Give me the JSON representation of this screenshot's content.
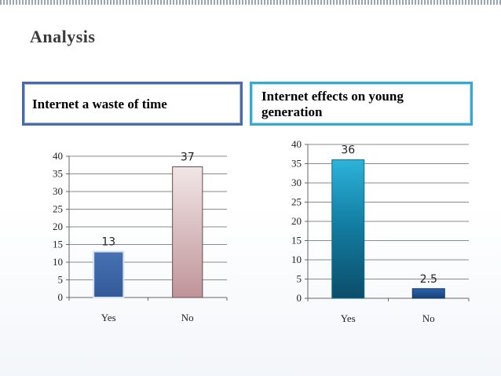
{
  "slide": {
    "title": "Analysis"
  },
  "headings": [
    {
      "text": "Internet a waste of time"
    },
    {
      "text": "Internet effects on young generation"
    }
  ],
  "chart_data": [
    {
      "type": "bar",
      "title": "Internet a waste of time",
      "categories": [
        "Yes",
        "No"
      ],
      "values": [
        13,
        37
      ],
      "data_labels": [
        "13",
        "37"
      ],
      "ylim": [
        0,
        40
      ],
      "yticks": [
        0,
        5,
        10,
        15,
        20,
        25,
        30,
        35,
        40
      ],
      "xlabel": "",
      "ylabel": "",
      "grid": true,
      "colors": [
        "#3f66a3",
        "#c9a0a5"
      ]
    },
    {
      "type": "bar",
      "title": "Internet effects on young generation",
      "categories": [
        "Yes",
        "No"
      ],
      "values": [
        36,
        2.5
      ],
      "data_labels": [
        "36",
        "2.5"
      ],
      "ylim": [
        0,
        40
      ],
      "yticks": [
        0,
        5,
        10,
        15,
        20,
        25,
        30,
        35,
        40
      ],
      "xlabel": "",
      "ylabel": "",
      "grid": true,
      "colors": [
        "#1f9fc6",
        "#1d4f8e"
      ]
    }
  ]
}
